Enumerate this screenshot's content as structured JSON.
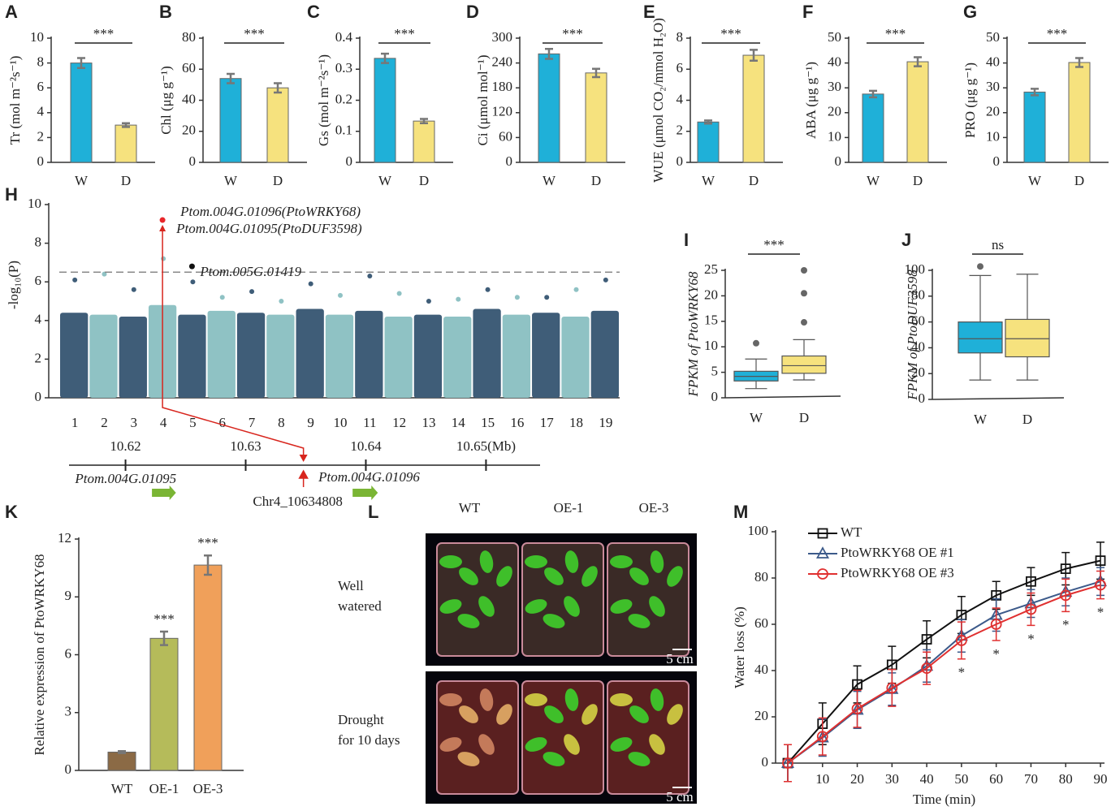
{
  "chart_data": [
    {
      "type": "bar",
      "letter": "A",
      "ylabel": "Tr (mol m⁻²s⁻¹)",
      "categories": [
        "W",
        "D"
      ],
      "values": [
        8.0,
        3.0
      ],
      "errors": [
        0.4,
        0.15
      ],
      "colors": [
        "#1fb0d8",
        "#f6e27e"
      ],
      "ylim": [
        0,
        10
      ],
      "yticks": [
        0,
        2,
        4,
        6,
        8,
        10
      ],
      "annotation": "***"
    },
    {
      "type": "bar",
      "letter": "B",
      "ylabel": "Chl (μg g⁻¹)",
      "categories": [
        "W",
        "D"
      ],
      "values": [
        54,
        48
      ],
      "errors": [
        3,
        3
      ],
      "colors": [
        "#1fb0d8",
        "#f6e27e"
      ],
      "ylim": [
        0,
        80
      ],
      "yticks": [
        0,
        20,
        40,
        60,
        80
      ],
      "annotation": "***"
    },
    {
      "type": "bar",
      "letter": "C",
      "ylabel": "Gs (mol m⁻²s⁻¹)",
      "categories": [
        "W",
        "D"
      ],
      "values": [
        0.335,
        0.133
      ],
      "errors": [
        0.015,
        0.007
      ],
      "colors": [
        "#1fb0d8",
        "#f6e27e"
      ],
      "ylim": [
        0,
        0.4
      ],
      "yticks": [
        0,
        0.1,
        0.2,
        0.3,
        0.4
      ],
      "annotation": "***"
    },
    {
      "type": "bar",
      "letter": "D",
      "ylabel": "Ci (μmol mol⁻¹)",
      "categories": [
        "W",
        "D"
      ],
      "values": [
        262,
        216
      ],
      "errors": [
        12,
        10
      ],
      "colors": [
        "#1fb0d8",
        "#f6e27e"
      ],
      "ylim": [
        0,
        300
      ],
      "yticks": [
        0,
        60,
        120,
        180,
        240,
        300
      ],
      "annotation": "***"
    },
    {
      "type": "bar",
      "letter": "E",
      "ylabel": "WUE (μmol CO₂/mmol H₂O)",
      "categories": [
        "W",
        "D"
      ],
      "values": [
        2.6,
        6.9
      ],
      "errors": [
        0.1,
        0.35
      ],
      "colors": [
        "#1fb0d8",
        "#f6e27e"
      ],
      "ylim": [
        0,
        8
      ],
      "yticks": [
        0,
        2,
        4,
        6,
        8
      ],
      "annotation": "***"
    },
    {
      "type": "bar",
      "letter": "F",
      "ylabel": "ABA (μg g⁻¹)",
      "categories": [
        "W",
        "D"
      ],
      "values": [
        27.5,
        40.5
      ],
      "errors": [
        1.3,
        1.8
      ],
      "colors": [
        "#1fb0d8",
        "#f6e27e"
      ],
      "ylim": [
        0,
        50
      ],
      "yticks": [
        0,
        10,
        20,
        30,
        40,
        50
      ],
      "annotation": "***"
    },
    {
      "type": "bar",
      "letter": "G",
      "ylabel": "PRO (μg g⁻¹)",
      "categories": [
        "W",
        "D"
      ],
      "values": [
        28.3,
        40.2
      ],
      "errors": [
        1.3,
        1.8
      ],
      "colors": [
        "#1fb0d8",
        "#f6e27e"
      ],
      "ylim": [
        0,
        50
      ],
      "yticks": [
        0,
        10,
        20,
        30,
        40,
        50
      ],
      "annotation": "***"
    },
    {
      "type": "manhattan",
      "letter": "H",
      "ylabel": "-log₁₀(P)",
      "categories": [
        "1",
        "2",
        "3",
        "4",
        "5",
        "6",
        "7",
        "8",
        "9",
        "10",
        "11",
        "12",
        "13",
        "14",
        "15",
        "16",
        "17",
        "18",
        "19"
      ],
      "values": [
        4.4,
        4.3,
        4.2,
        4.8,
        4.3,
        4.5,
        4.4,
        4.3,
        4.6,
        4.3,
        4.5,
        4.2,
        4.3,
        4.2,
        4.6,
        4.3,
        4.4,
        4.2,
        4.5
      ],
      "peaks": [
        6.1,
        6.4,
        5.6,
        7.2,
        6.0,
        5.2,
        5.5,
        5.0,
        5.9,
        5.3,
        6.3,
        5.4,
        5.0,
        5.1,
        5.6,
        5.2,
        5.2,
        5.6,
        6.1
      ],
      "colors": [
        "#3f5d78",
        "#8fc2c4"
      ],
      "threshold": 6.5,
      "ylim": [
        0,
        10
      ],
      "yticks": [
        0,
        2,
        4,
        6,
        8,
        10
      ],
      "highlights": [
        {
          "category": "4",
          "value": 9.2,
          "color": "#e8262a"
        },
        {
          "category": "5",
          "value": 6.8,
          "color": "#111111"
        }
      ],
      "annotations": [
        "Ptom.004G.01096(PtoWRKY68)",
        "Ptom.004G.01095(PtoDUF3598)",
        "Ptom.005G.01419"
      ]
    },
    {
      "type": "box",
      "letter": "I",
      "ylabel": "FPKM of PtoWRKY68",
      "categories": [
        "W",
        "D"
      ],
      "colors": [
        "#1fb0d8",
        "#f6e27e"
      ],
      "boxes": [
        {
          "min": 1.8,
          "q1": 3.3,
          "median": 4.2,
          "q3": 5.2,
          "max": 7.6,
          "outliers": [
            10.7
          ]
        },
        {
          "min": 3.5,
          "q1": 4.8,
          "median": 6.3,
          "q3": 8.2,
          "max": 11.4,
          "outliers": [
            14.8,
            20.5,
            25
          ]
        }
      ],
      "ylim": [
        0,
        25
      ],
      "yticks": [
        0,
        5,
        10,
        15,
        20,
        25
      ],
      "annotation": "***"
    },
    {
      "type": "box",
      "letter": "J",
      "ylabel": "FPKM of PtoDUF3598",
      "categories": [
        "W",
        "D"
      ],
      "colors": [
        "#1fb0d8",
        "#f6e27e"
      ],
      "boxes": [
        {
          "min": 15,
          "q1": 36,
          "median": 47,
          "q3": 60,
          "max": 96,
          "outliers": [
            103
          ]
        },
        {
          "min": 15,
          "q1": 33,
          "median": 47,
          "q3": 62,
          "max": 97,
          "outliers": []
        }
      ],
      "ylim": [
        0,
        100
      ],
      "yticks": [
        0,
        20,
        40,
        60,
        80,
        100
      ],
      "annotation": "ns"
    },
    {
      "type": "bar",
      "letter": "K",
      "ylabel": "Relative expression of PtoWRKY68",
      "categories": [
        "WT",
        "OE-1",
        "OE-3"
      ],
      "values": [
        0.95,
        6.85,
        10.65
      ],
      "errors": [
        0.05,
        0.35,
        0.5
      ],
      "colors": [
        "#8b6a45",
        "#b5bb5a",
        "#f0a05a"
      ],
      "ylim": [
        0,
        12
      ],
      "yticks": [
        0,
        3,
        6,
        9,
        12
      ],
      "value_annotations": [
        null,
        "***",
        "***"
      ]
    },
    {
      "type": "line",
      "letter": "M",
      "ylabel": "Water loss (%)",
      "xlabel": "Time (min)",
      "x": [
        0,
        10,
        20,
        30,
        40,
        50,
        60,
        70,
        80,
        90
      ],
      "xlim": [
        0,
        90
      ],
      "xticks": [
        10,
        20,
        30,
        40,
        50,
        60,
        70,
        80,
        90
      ],
      "ylim": [
        0,
        100
      ],
      "yticks": [
        0,
        20,
        40,
        60,
        80,
        100
      ],
      "series": [
        {
          "name": "WT",
          "color": "#111111",
          "marker": "square",
          "values": [
            0,
            17,
            34,
            42.5,
            53.5,
            64,
            72.5,
            78.5,
            84,
            87.5
          ],
          "errors": [
            8,
            9,
            8,
            8,
            8,
            8,
            6,
            6,
            7,
            8
          ]
        },
        {
          "name": "PtoWRKY68 OE #1",
          "color": "#3c5a8a",
          "marker": "triangle",
          "values": [
            0,
            11,
            23,
            32,
            42,
            55,
            64,
            69,
            74,
            78.5
          ],
          "errors": [
            8,
            8,
            8,
            7,
            7,
            7,
            7,
            6,
            6,
            6
          ]
        },
        {
          "name": "PtoWRKY68 OE #3",
          "color": "#e03030",
          "marker": "circle",
          "values": [
            0,
            11.5,
            23.5,
            32.5,
            41,
            53,
            60,
            66.5,
            72.5,
            77
          ],
          "errors": [
            8,
            8,
            8,
            8,
            7,
            8,
            7,
            7,
            7,
            6
          ]
        }
      ],
      "annotation": "*",
      "annotation_x": [
        50,
        60,
        70,
        80,
        90
      ],
      "legend": "upper left"
    }
  ],
  "gene_track": {
    "xlim": [
      10.6153,
      10.6545
    ],
    "xticks": [
      10.62,
      10.63,
      10.64,
      {
        "value": 10.65,
        "label": "10.65(Mb)"
      }
    ],
    "genes": [
      {
        "name": "Ptom.004G.01095",
        "start": 10.6222,
        "end": 10.6242
      },
      {
        "name": "Ptom.004G.01096",
        "start": 10.6389,
        "end": 10.641
      }
    ],
    "snp": {
      "label": "Chr4_10634808",
      "position": 10.634808
    }
  },
  "photo": {
    "letter": "L",
    "columns": [
      "WT",
      "OE-1",
      "OE-3"
    ],
    "rows": [
      "Well watered",
      "Drought for 10 days"
    ],
    "scale_bar": "5 cm"
  }
}
